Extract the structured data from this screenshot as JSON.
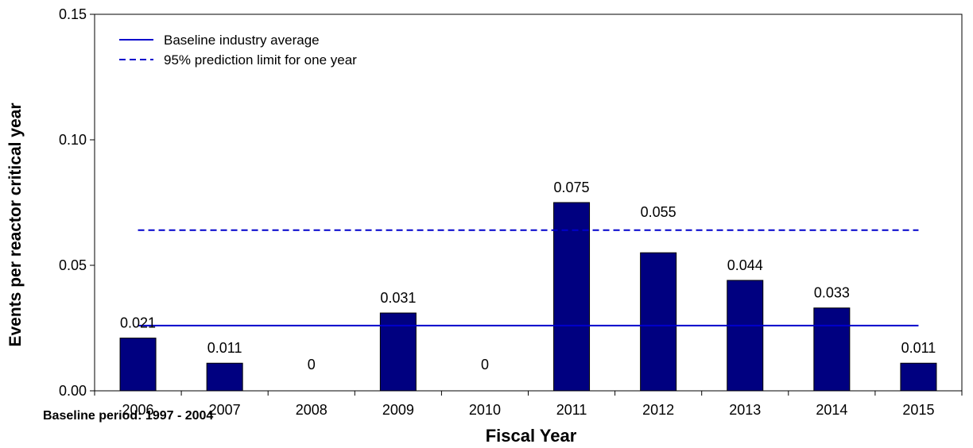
{
  "chart_data": {
    "type": "bar",
    "categories": [
      "2006",
      "2007",
      "2008",
      "2009",
      "2010",
      "2011",
      "2012",
      "2013",
      "2014",
      "2015"
    ],
    "values": [
      0.021,
      0.011,
      0,
      0.031,
      0,
      0.075,
      0.055,
      0.044,
      0.033,
      0.011
    ],
    "data_labels": [
      "0.021",
      "0.011",
      "0",
      "0.031",
      "0",
      "0.075",
      "0.055",
      "0.044",
      "0.033",
      "0.011"
    ],
    "xlabel": "Fiscal Year",
    "ylabel": "Events per reactor critical year",
    "ylim": [
      0,
      0.15
    ],
    "yticks": [
      "0.00",
      "0.05",
      "0.10",
      "0.15"
    ],
    "grid": false,
    "legend_position": "top-left",
    "bar_color": "#000080",
    "reference_lines": [
      {
        "name": "Baseline industry average",
        "value": 0.026,
        "style": "solid",
        "color": "#0000cc"
      },
      {
        "name": "95% prediction limit for one year",
        "value": 0.064,
        "style": "dashed",
        "color": "#0000cc"
      }
    ],
    "footnote": "Baseline period:  1997 - 2004"
  }
}
